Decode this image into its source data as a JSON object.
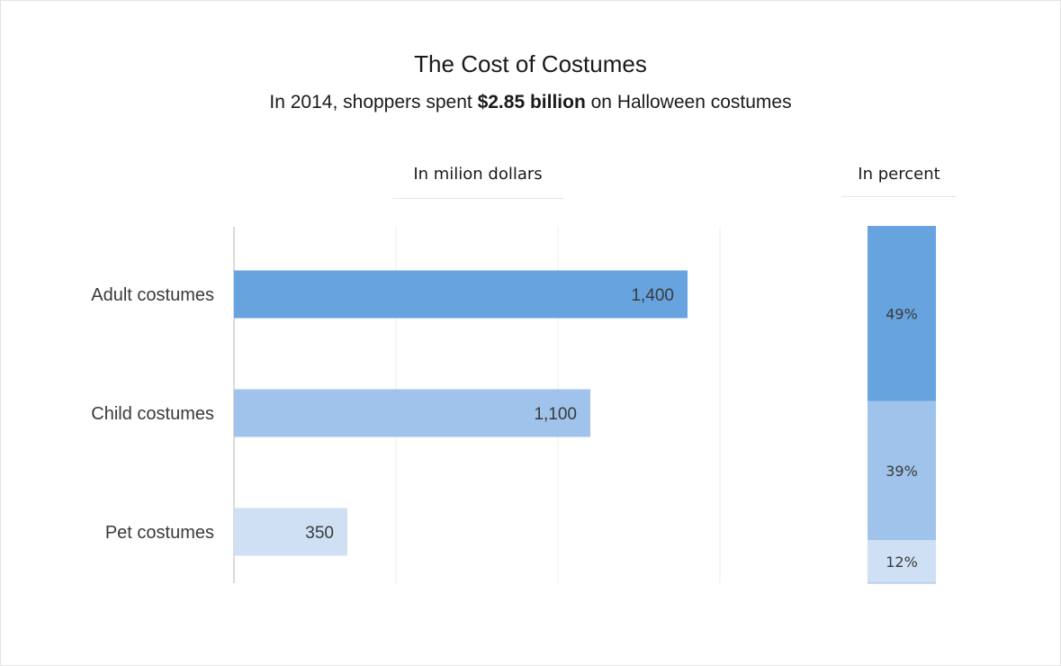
{
  "chart_data": [
    {
      "type": "bar",
      "orientation": "horizontal",
      "title": "The Cost of Costumes",
      "subtitle": {
        "before": "In 2014, shoppers spent ",
        "bold": "$2.85 billion",
        "after": " on Halloween costumes"
      },
      "section_label": "In milion dollars",
      "categories": [
        "Adult costumes",
        "Child costumes",
        "Pet costumes"
      ],
      "values": [
        1400,
        1100,
        350
      ],
      "value_labels": [
        "1,400",
        "1,100",
        "350"
      ],
      "colors": [
        "#67a3df",
        "#a0c3eb",
        "#cfe0f4"
      ],
      "xlim": [
        0,
        1500
      ],
      "grid": true
    },
    {
      "type": "bar",
      "orientation": "vertical-stacked",
      "section_label": "In percent",
      "segments": [
        {
          "value": 49,
          "label": "49%",
          "color": "#67a3df"
        },
        {
          "value": 39,
          "label": "39%",
          "color": "#a0c3eb"
        },
        {
          "value": 12,
          "label": "12%",
          "color": "#cfe0f4"
        }
      ],
      "ylim": [
        0,
        100
      ]
    }
  ]
}
